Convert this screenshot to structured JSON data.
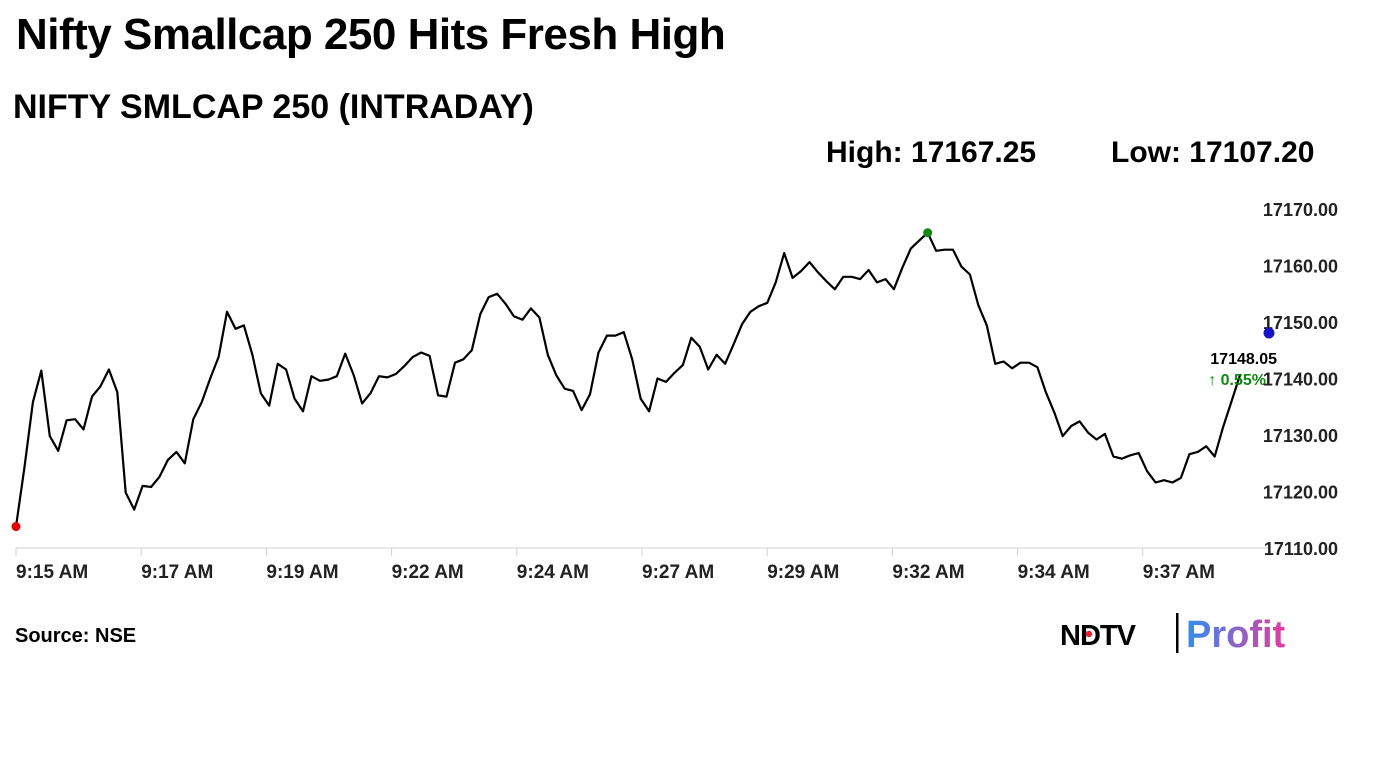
{
  "header": {
    "headline": "Nifty Smallcap 250 Hits Fresh High",
    "subtitle": "NIFTY SMLCAP 250 (INTRADAY)"
  },
  "stats": {
    "high_label": "High: 17167.25",
    "low_label": "Low: 17107.20"
  },
  "footer": {
    "source": "Source: NSE",
    "logo_left": "NDTV",
    "logo_right": "Profit"
  },
  "colors": {
    "line": "#000000",
    "low_marker": "#e00000",
    "high_marker": "#118811",
    "last_marker": "#1515c8",
    "change_text": "#118811",
    "axis": "#d0d0d0",
    "logo_red": "#e8202a",
    "logo_gradient_start": "#2f8ff0",
    "logo_gradient_end": "#e43ba0"
  },
  "chart_data": {
    "type": "line",
    "title": "NIFTY SMLCAP 250 (INTRADAY)",
    "ylim": [
      17110,
      17170
    ],
    "yticks": [
      "17170.00",
      "17160.00",
      "17150.00",
      "17140.00",
      "17130.00",
      "17120.00",
      "17110.00"
    ],
    "ytick_values": [
      17170,
      17160,
      17150,
      17140,
      17130,
      17120,
      17110
    ],
    "xticks": [
      "9:15 AM",
      "9:17 AM",
      "9:19 AM",
      "9:22 AM",
      "9:24 AM",
      "9:27 AM",
      "9:29 AM",
      "9:32 AM",
      "9:34 AM",
      "9:37 AM"
    ],
    "grid": false,
    "last_value_label": "17148.05",
    "change_label": "↑ 0.55%",
    "last_value": 17148.05,
    "series": [
      {
        "values": [
          17113.8,
          17124.2,
          17135.8,
          17141.4,
          17129.8,
          17127.2,
          17132.6,
          17132.8,
          17131.0,
          17136.8,
          17138.6,
          17141.6,
          17137.6,
          17119.8,
          17116.8,
          17121.0,
          17120.8,
          17122.6,
          17125.6,
          17127.0,
          17125.0,
          17132.8,
          17135.8,
          17140.0,
          17143.8,
          17151.8,
          17148.8,
          17149.4,
          17144.2,
          17137.4,
          17135.2,
          17142.6,
          17141.6,
          17136.4,
          17134.2,
          17140.4,
          17139.6,
          17139.8,
          17140.4,
          17144.4,
          17140.6,
          17135.6,
          17137.4,
          17140.4,
          17140.2,
          17140.8,
          17142.2,
          17143.8,
          17144.6,
          17144.0,
          17137.0,
          17136.8,
          17142.8,
          17143.4,
          17145.0,
          17151.4,
          17154.4,
          17155.0,
          17153.2,
          17151.0,
          17150.4,
          17152.4,
          17150.8,
          17144.2,
          17140.6,
          17138.2,
          17137.8,
          17134.4,
          17137.2,
          17144.6,
          17147.6,
          17147.6,
          17148.2,
          17143.4,
          17136.4,
          17134.2,
          17140.0,
          17139.4,
          17141.0,
          17142.4,
          17147.2,
          17145.6,
          17141.6,
          17144.2,
          17142.6,
          17146.0,
          17149.6,
          17151.8,
          17152.8,
          17153.4,
          17157.0,
          17162.2,
          17157.8,
          17159.0,
          17160.6,
          17158.8,
          17157.2,
          17155.8,
          17158.0,
          17158.0,
          17157.6,
          17159.2,
          17157.0,
          17157.6,
          17155.8,
          17159.6,
          17163.0,
          17164.4,
          17165.8,
          17162.6,
          17162.8,
          17162.8,
          17159.8,
          17158.4,
          17153.0,
          17149.4,
          17142.6,
          17143.0,
          17141.8,
          17142.8,
          17142.8,
          17142.0,
          17137.6,
          17134.0,
          17129.8,
          17131.6,
          17132.4,
          17130.4,
          17129.2,
          17130.2,
          17126.2,
          17125.8,
          17126.4,
          17126.8,
          17123.6,
          17121.6,
          17122.0,
          17121.6,
          17122.4,
          17126.6,
          17127.0,
          17128.0,
          17126.2,
          17131.4,
          17136.0,
          17140.6
        ]
      }
    ]
  }
}
